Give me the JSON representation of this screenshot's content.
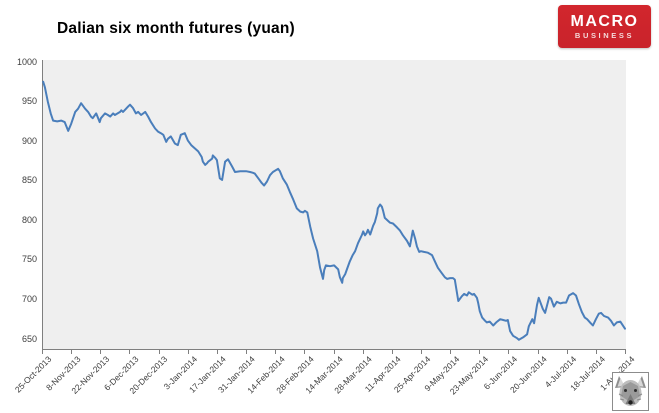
{
  "title": "Dalian six month futures (yuan)",
  "logo": {
    "line1": "MACRO",
    "line2": "BUSINESS",
    "bg_color": "#c9232b",
    "text_color": "#ffffff"
  },
  "icons": {
    "wolf_logo": "wolf-logo-icon"
  },
  "chart_data": {
    "type": "line",
    "title": "Dalian six month futures (yuan)",
    "ylabel": "",
    "xlabel": "",
    "ylim": [
      650,
      1000
    ],
    "ytick_interval": 50,
    "grid": false,
    "legend": "none",
    "plot_bg_color": "#efefef",
    "line_color": "#4a7ebb",
    "axis_color": "#7f7f7f",
    "yticks": [
      1000,
      950,
      900,
      850,
      800,
      750,
      700,
      650
    ],
    "xticklabels": [
      "25-Oct-2013",
      "8-Nov-2013",
      "22-Nov-2013",
      "6-Dec-2013",
      "20-Dec-2013",
      "3-Jan-2014",
      "17-Jan-2014",
      "31-Jan-2014",
      "14-Feb-2014",
      "28-Feb-2014",
      "14-Mar-2014",
      "28-Mar-2014",
      "11-Apr-2014",
      "25-Apr-2014",
      "9-May-2014",
      "23-May-2014",
      "6-Jun-2014",
      "20-Jun-2014",
      "4-Jul-2014",
      "18-Jul-2014",
      "1-Aug-2014"
    ],
    "series_name": "Dalian six month futures",
    "points": [
      [
        0.002,
        975
      ],
      [
        0.005,
        968
      ],
      [
        0.01,
        950
      ],
      [
        0.015,
        935
      ],
      [
        0.019,
        926
      ],
      [
        0.026,
        925
      ],
      [
        0.033,
        926
      ],
      [
        0.039,
        924
      ],
      [
        0.045,
        913
      ],
      [
        0.05,
        922
      ],
      [
        0.057,
        937
      ],
      [
        0.062,
        941
      ],
      [
        0.067,
        948
      ],
      [
        0.074,
        941
      ],
      [
        0.079,
        937
      ],
      [
        0.084,
        931
      ],
      [
        0.087,
        929
      ],
      [
        0.093,
        935
      ],
      [
        0.099,
        924
      ],
      [
        0.101,
        929
      ],
      [
        0.108,
        935
      ],
      [
        0.113,
        933
      ],
      [
        0.117,
        931
      ],
      [
        0.122,
        935
      ],
      [
        0.125,
        933
      ],
      [
        0.134,
        937
      ],
      [
        0.136,
        939
      ],
      [
        0.139,
        937
      ],
      [
        0.148,
        944
      ],
      [
        0.151,
        946
      ],
      [
        0.156,
        942
      ],
      [
        0.161,
        935
      ],
      [
        0.165,
        937
      ],
      [
        0.17,
        933
      ],
      [
        0.177,
        937
      ],
      [
        0.182,
        931
      ],
      [
        0.187,
        924
      ],
      [
        0.194,
        916
      ],
      [
        0.199,
        912
      ],
      [
        0.204,
        910
      ],
      [
        0.208,
        908
      ],
      [
        0.213,
        899
      ],
      [
        0.216,
        903
      ],
      [
        0.221,
        906
      ],
      [
        0.228,
        897
      ],
      [
        0.233,
        895
      ],
      [
        0.238,
        908
      ],
      [
        0.245,
        910
      ],
      [
        0.25,
        901
      ],
      [
        0.256,
        895
      ],
      [
        0.262,
        891
      ],
      [
        0.268,
        887
      ],
      [
        0.274,
        880
      ],
      [
        0.276,
        874
      ],
      [
        0.28,
        870
      ],
      [
        0.283,
        872
      ],
      [
        0.285,
        874
      ],
      [
        0.292,
        878
      ],
      [
        0.293,
        882
      ],
      [
        0.297,
        879
      ],
      [
        0.3,
        876
      ],
      [
        0.305,
        853
      ],
      [
        0.309,
        851
      ],
      [
        0.314,
        874
      ],
      [
        0.319,
        877
      ],
      [
        0.326,
        868
      ],
      [
        0.331,
        861
      ],
      [
        0.34,
        862
      ],
      [
        0.35,
        862
      ],
      [
        0.357,
        861
      ],
      [
        0.362,
        860
      ],
      [
        0.365,
        859
      ],
      [
        0.371,
        853
      ],
      [
        0.377,
        847
      ],
      [
        0.381,
        844
      ],
      [
        0.386,
        849
      ],
      [
        0.391,
        857
      ],
      [
        0.396,
        861
      ],
      [
        0.405,
        865
      ],
      [
        0.408,
        862
      ],
      [
        0.413,
        853
      ],
      [
        0.42,
        845
      ],
      [
        0.425,
        836
      ],
      [
        0.431,
        826
      ],
      [
        0.437,
        815
      ],
      [
        0.443,
        811
      ],
      [
        0.448,
        810
      ],
      [
        0.451,
        812
      ],
      [
        0.455,
        810
      ],
      [
        0.46,
        792
      ],
      [
        0.465,
        777
      ],
      [
        0.472,
        761
      ],
      [
        0.477,
        740
      ],
      [
        0.482,
        726
      ],
      [
        0.484,
        737
      ],
      [
        0.487,
        743
      ],
      [
        0.494,
        742
      ],
      [
        0.501,
        743
      ],
      [
        0.508,
        738
      ],
      [
        0.511,
        728
      ],
      [
        0.515,
        721
      ],
      [
        0.516,
        727
      ],
      [
        0.52,
        732
      ],
      [
        0.523,
        738
      ],
      [
        0.528,
        748
      ],
      [
        0.533,
        756
      ],
      [
        0.537,
        761
      ],
      [
        0.542,
        771
      ],
      [
        0.549,
        782
      ],
      [
        0.551,
        786
      ],
      [
        0.554,
        781
      ],
      [
        0.557,
        784
      ],
      [
        0.559,
        788
      ],
      [
        0.563,
        782
      ],
      [
        0.568,
        793
      ],
      [
        0.571,
        798
      ],
      [
        0.575,
        809
      ],
      [
        0.576,
        815
      ],
      [
        0.58,
        820
      ],
      [
        0.583,
        817
      ],
      [
        0.585,
        812
      ],
      [
        0.588,
        803
      ],
      [
        0.594,
        799
      ],
      [
        0.597,
        797
      ],
      [
        0.602,
        796
      ],
      [
        0.609,
        791
      ],
      [
        0.614,
        787
      ],
      [
        0.619,
        781
      ],
      [
        0.626,
        774
      ],
      [
        0.631,
        767
      ],
      [
        0.636,
        787
      ],
      [
        0.64,
        777
      ],
      [
        0.643,
        767
      ],
      [
        0.647,
        760
      ],
      [
        0.65,
        761
      ],
      [
        0.655,
        760
      ],
      [
        0.662,
        759
      ],
      [
        0.669,
        756
      ],
      [
        0.674,
        748
      ],
      [
        0.679,
        740
      ],
      [
        0.686,
        733
      ],
      [
        0.691,
        728
      ],
      [
        0.695,
        726
      ],
      [
        0.7,
        727
      ],
      [
        0.705,
        727
      ],
      [
        0.708,
        725
      ],
      [
        0.714,
        698
      ],
      [
        0.72,
        704
      ],
      [
        0.724,
        707
      ],
      [
        0.729,
        705
      ],
      [
        0.732,
        709
      ],
      [
        0.738,
        706
      ],
      [
        0.741,
        707
      ],
      [
        0.746,
        702
      ],
      [
        0.748,
        696
      ],
      [
        0.751,
        685
      ],
      [
        0.755,
        677
      ],
      [
        0.76,
        673
      ],
      [
        0.763,
        671
      ],
      [
        0.768,
        672
      ],
      [
        0.774,
        667
      ],
      [
        0.779,
        671
      ],
      [
        0.786,
        675
      ],
      [
        0.791,
        674
      ],
      [
        0.796,
        673
      ],
      [
        0.799,
        674
      ],
      [
        0.803,
        660
      ],
      [
        0.808,
        654
      ],
      [
        0.815,
        651
      ],
      [
        0.818,
        649
      ],
      [
        0.825,
        652
      ],
      [
        0.832,
        656
      ],
      [
        0.835,
        666
      ],
      [
        0.841,
        675
      ],
      [
        0.844,
        670
      ],
      [
        0.849,
        693
      ],
      [
        0.852,
        702
      ],
      [
        0.859,
        688
      ],
      [
        0.863,
        683
      ],
      [
        0.87,
        703
      ],
      [
        0.873,
        701
      ],
      [
        0.878,
        691
      ],
      [
        0.883,
        697
      ],
      [
        0.889,
        695
      ],
      [
        0.894,
        696
      ],
      [
        0.899,
        696
      ],
      [
        0.904,
        705
      ],
      [
        0.911,
        708
      ],
      [
        0.916,
        705
      ],
      [
        0.921,
        694
      ],
      [
        0.926,
        684
      ],
      [
        0.931,
        677
      ],
      [
        0.935,
        675
      ],
      [
        0.94,
        671
      ],
      [
        0.945,
        667
      ],
      [
        0.95,
        675
      ],
      [
        0.955,
        682
      ],
      [
        0.959,
        683
      ],
      [
        0.964,
        679
      ],
      [
        0.971,
        677
      ],
      [
        0.976,
        673
      ],
      [
        0.981,
        667
      ],
      [
        0.986,
        671
      ],
      [
        0.992,
        672
      ],
      [
        1.0,
        663
      ]
    ]
  }
}
